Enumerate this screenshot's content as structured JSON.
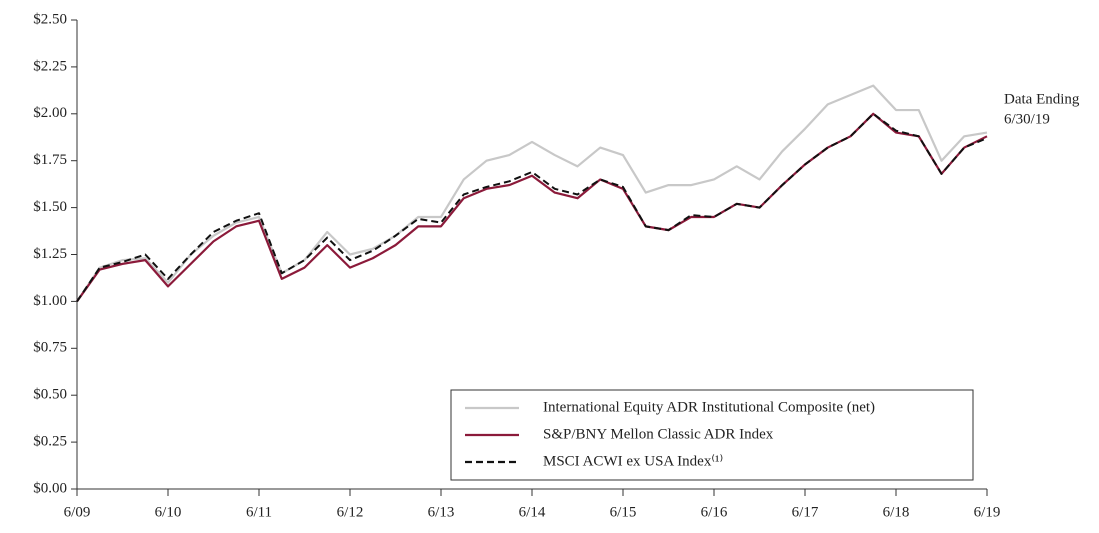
{
  "chart_data": {
    "type": "line",
    "x": [
      2009.5,
      2009.75,
      2010,
      2010.25,
      2010.5,
      2010.75,
      2011,
      2011.25,
      2011.5,
      2011.75,
      2012,
      2012.25,
      2012.5,
      2012.75,
      2013,
      2013.25,
      2013.5,
      2013.75,
      2014,
      2014.25,
      2014.5,
      2014.75,
      2015,
      2015.25,
      2015.5,
      2015.75,
      2016,
      2016.25,
      2016.5,
      2016.75,
      2017,
      2017.25,
      2017.5,
      2017.75,
      2018,
      2018.25,
      2018.5,
      2018.75,
      2019,
      2019.25,
      2019.5
    ],
    "series": [
      {
        "name": "International Equity ADR Institutional Composite (net)",
        "color": "#c8c8c8",
        "dash": false,
        "values": [
          1.0,
          1.18,
          1.22,
          1.23,
          1.1,
          1.25,
          1.35,
          1.42,
          1.45,
          1.15,
          1.22,
          1.37,
          1.25,
          1.28,
          1.35,
          1.45,
          1.45,
          1.65,
          1.75,
          1.78,
          1.85,
          1.78,
          1.72,
          1.82,
          1.78,
          1.58,
          1.62,
          1.62,
          1.65,
          1.72,
          1.65,
          1.8,
          1.92,
          2.05,
          2.1,
          2.15,
          2.02,
          2.02,
          1.75,
          1.88,
          1.9
        ]
      },
      {
        "name": "S&P/BNY Mellon Classic ADR Index",
        "color": "#8b1a3a",
        "dash": false,
        "values": [
          1.0,
          1.17,
          1.2,
          1.22,
          1.08,
          1.2,
          1.32,
          1.4,
          1.43,
          1.12,
          1.18,
          1.3,
          1.18,
          1.23,
          1.3,
          1.4,
          1.4,
          1.55,
          1.6,
          1.62,
          1.67,
          1.58,
          1.55,
          1.65,
          1.6,
          1.4,
          1.38,
          1.45,
          1.45,
          1.52,
          1.5,
          1.62,
          1.73,
          1.82,
          1.88,
          2.0,
          1.9,
          1.88,
          1.68,
          1.82,
          1.88
        ]
      },
      {
        "name": "MSCI ACWI ex USA Index⁽¹⁾",
        "color": "#111111",
        "dash": true,
        "values": [
          1.0,
          1.18,
          1.21,
          1.25,
          1.12,
          1.25,
          1.37,
          1.43,
          1.47,
          1.15,
          1.22,
          1.34,
          1.22,
          1.27,
          1.35,
          1.44,
          1.42,
          1.57,
          1.61,
          1.64,
          1.69,
          1.6,
          1.57,
          1.65,
          1.61,
          1.4,
          1.38,
          1.46,
          1.45,
          1.52,
          1.5,
          1.62,
          1.73,
          1.82,
          1.88,
          2.0,
          1.91,
          1.88,
          1.68,
          1.82,
          1.87
        ]
      }
    ],
    "xlim": [
      2009.5,
      2019.5
    ],
    "xticks": [
      {
        "value": 2009.5,
        "label": "6/09"
      },
      {
        "value": 2010.5,
        "label": "6/10"
      },
      {
        "value": 2011.5,
        "label": "6/11"
      },
      {
        "value": 2012.5,
        "label": "6/12"
      },
      {
        "value": 2013.5,
        "label": "6/13"
      },
      {
        "value": 2014.5,
        "label": "6/14"
      },
      {
        "value": 2015.5,
        "label": "6/15"
      },
      {
        "value": 2016.5,
        "label": "6/16"
      },
      {
        "value": 2017.5,
        "label": "6/17"
      },
      {
        "value": 2018.5,
        "label": "6/18"
      },
      {
        "value": 2019.5,
        "label": "6/19"
      }
    ],
    "ylim": [
      0,
      2.5
    ],
    "yticks": [
      {
        "value": 0,
        "label": "$0.00"
      },
      {
        "value": 0.25,
        "label": "$0.25"
      },
      {
        "value": 0.5,
        "label": "$0.50"
      },
      {
        "value": 0.75,
        "label": "$0.75"
      },
      {
        "value": 1,
        "label": "$1.00"
      },
      {
        "value": 1.25,
        "label": "$1.25"
      },
      {
        "value": 1.5,
        "label": "$1.50"
      },
      {
        "value": 1.75,
        "label": "$1.75"
      },
      {
        "value": 2,
        "label": "$2.00"
      },
      {
        "value": 2.25,
        "label": "$2.25"
      },
      {
        "value": 2.5,
        "label": "$2.50"
      }
    ],
    "annotation": [
      "Data Ending",
      "6/30/19"
    ],
    "legend": "lower right"
  }
}
